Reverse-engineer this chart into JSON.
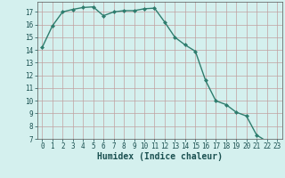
{
  "x": [
    0,
    1,
    2,
    3,
    4,
    5,
    6,
    7,
    8,
    9,
    10,
    11,
    12,
    13,
    14,
    15,
    16,
    17,
    18,
    19,
    20,
    21,
    22,
    23
  ],
  "y": [
    14.2,
    15.9,
    17.0,
    17.2,
    17.35,
    17.4,
    16.7,
    17.0,
    17.1,
    17.1,
    17.25,
    17.3,
    16.2,
    15.0,
    14.4,
    13.9,
    11.6,
    10.0,
    9.7,
    9.1,
    8.8,
    7.3,
    6.8,
    6.75
  ],
  "line_color": "#2e7d6e",
  "marker": "D",
  "marker_size": 2,
  "background_color": "#d4f0ee",
  "grid_color": "#c0a0a0",
  "xlabel": "Humidex (Indice chaleur)",
  "xlim": [
    -0.5,
    23.5
  ],
  "ylim": [
    7,
    17.8
  ],
  "yticks": [
    7,
    8,
    9,
    10,
    11,
    12,
    13,
    14,
    15,
    16,
    17
  ],
  "xticks": [
    0,
    1,
    2,
    3,
    4,
    5,
    6,
    7,
    8,
    9,
    10,
    11,
    12,
    13,
    14,
    15,
    16,
    17,
    18,
    19,
    20,
    21,
    22,
    23
  ],
  "tick_fontsize": 5.5,
  "xlabel_fontsize": 7,
  "line_width": 1.0
}
